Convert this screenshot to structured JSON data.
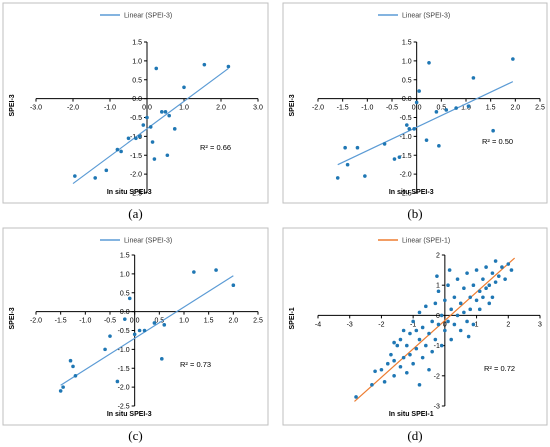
{
  "chart_data": [
    {
      "panel": "a",
      "caption": "(a)",
      "type": "scatter",
      "legend": "Linear (SPEI-3)",
      "ylabel": "SPEI-3",
      "xlabel": "In situ SPEI-3",
      "r2": "R² = 0.66",
      "colors": {
        "points": "#1f77b4",
        "line": "#5b9bd5"
      },
      "xlim": [
        -3.0,
        3.0
      ],
      "ylim": [
        -2.5,
        1.5
      ],
      "x_ticks": [
        -3.0,
        -2.0,
        -1.0,
        0.0,
        1.0,
        2.0,
        3.0
      ],
      "x_tick_labels": [
        "-3.0",
        "-2.0",
        "-1.0",
        "0.0",
        "1.0",
        "2.0",
        "3.0"
      ],
      "y_ticks": [
        1.5,
        1.0,
        0.5,
        0.0,
        -0.5,
        -1.0,
        -1.5,
        -2.0,
        -2.5
      ],
      "y_tick_labels": [
        "1.5",
        "1.0",
        "0.5",
        "0.0",
        "-0.5",
        "-1.0",
        "-1.5",
        "-2.0",
        "-2.5"
      ],
      "x_tick_labels_at_axis": true,
      "trendline": [
        [
          -2.0,
          -2.25
        ],
        [
          2.2,
          0.8
        ]
      ],
      "points": [
        [
          -1.95,
          -2.05
        ],
        [
          -1.4,
          -2.1
        ],
        [
          -1.1,
          -1.9
        ],
        [
          -0.8,
          -1.35
        ],
        [
          -0.7,
          -1.4
        ],
        [
          -0.5,
          -1.05
        ],
        [
          -0.3,
          -1.05
        ],
        [
          -0.2,
          -1.0
        ],
        [
          -0.1,
          -0.7
        ],
        [
          0.0,
          -0.5
        ],
        [
          0.1,
          -0.75
        ],
        [
          0.15,
          -1.15
        ],
        [
          0.2,
          -1.6
        ],
        [
          0.25,
          0.8
        ],
        [
          0.4,
          -0.35
        ],
        [
          0.5,
          -0.35
        ],
        [
          0.55,
          -1.5
        ],
        [
          0.6,
          -0.45
        ],
        [
          0.75,
          -0.8
        ],
        [
          1.0,
          0.3
        ],
        [
          1.55,
          0.9
        ],
        [
          2.2,
          0.85
        ]
      ]
    },
    {
      "panel": "b",
      "caption": "(b)",
      "type": "scatter",
      "legend": "Linear (SPEI-3)",
      "ylabel": "SPEI-3",
      "xlabel": "In situ SPEI-3",
      "r2": "R² = 0.50",
      "colors": {
        "points": "#1f77b4",
        "line": "#5b9bd5"
      },
      "xlim": [
        -2.0,
        2.5
      ],
      "ylim": [
        -2.5,
        1.5
      ],
      "x_ticks": [
        -2.0,
        -1.5,
        -1.0,
        -0.5,
        0.0,
        0.5,
        1.0,
        1.5,
        2.0,
        2.5
      ],
      "x_tick_labels": [
        "-2.0",
        "-1.5",
        "-1.0",
        "-0.5",
        "0.0",
        "0.5",
        "1.0",
        "1.5",
        "2.0",
        "2.5"
      ],
      "y_ticks": [
        1.5,
        1.0,
        0.5,
        0.0,
        -0.5,
        -1.0,
        -1.5,
        -2.0,
        -2.5
      ],
      "y_tick_labels": [
        "1.5",
        "1.0",
        "0.5",
        "0.0",
        "-0.5",
        "-1.0",
        "-1.5",
        "-2.0",
        "-2.5"
      ],
      "x_tick_labels_at_axis": true,
      "trendline": [
        [
          -1.6,
          -1.75
        ],
        [
          1.95,
          0.45
        ]
      ],
      "points": [
        [
          -1.6,
          -2.1
        ],
        [
          -1.45,
          -1.3
        ],
        [
          -1.4,
          -1.75
        ],
        [
          -1.2,
          -1.3
        ],
        [
          -1.05,
          -2.05
        ],
        [
          -0.65,
          -1.2
        ],
        [
          -0.45,
          -1.6
        ],
        [
          -0.35,
          -1.55
        ],
        [
          -0.2,
          -0.7
        ],
        [
          -0.15,
          -0.8
        ],
        [
          -0.05,
          -0.8
        ],
        [
          0.0,
          -0.1
        ],
        [
          0.05,
          0.2
        ],
        [
          0.2,
          -1.1
        ],
        [
          0.25,
          0.95
        ],
        [
          0.4,
          -0.35
        ],
        [
          0.45,
          -1.25
        ],
        [
          0.6,
          -0.3
        ],
        [
          0.8,
          -0.25
        ],
        [
          1.05,
          -0.2
        ],
        [
          1.15,
          0.55
        ],
        [
          1.55,
          -0.85
        ],
        [
          1.95,
          1.05
        ]
      ]
    },
    {
      "panel": "c",
      "caption": "(c)",
      "type": "scatter",
      "legend": "Linear (SPEI-3)",
      "ylabel": "SPEI-3",
      "xlabel": "In situ SPEI-3",
      "r2": "R² = 0.73",
      "colors": {
        "points": "#1f77b4",
        "line": "#5b9bd5"
      },
      "xlim": [
        -2.0,
        2.5
      ],
      "ylim": [
        -2.5,
        1.5
      ],
      "x_ticks": [
        -2.0,
        -1.5,
        -1.0,
        -0.5,
        0.0,
        0.5,
        1.0,
        1.5,
        2.0,
        2.5
      ],
      "x_tick_labels": [
        "-2.0",
        "-1.5",
        "-1.0",
        "-0.5",
        "0.0",
        "0.5",
        "1.0",
        "1.5",
        "2.0",
        "2.5"
      ],
      "y_ticks": [
        1.5,
        1.0,
        0.5,
        0.0,
        -0.5,
        -1.0,
        -1.5,
        -2.0,
        -2.5
      ],
      "y_tick_labels": [
        "1.5",
        "1.0",
        "0.5",
        "0.0",
        "-0.5",
        "-1.0",
        "-1.5",
        "-2.0",
        "-2.5"
      ],
      "x_tick_labels_at_axis": true,
      "trendline": [
        [
          -1.5,
          -1.95
        ],
        [
          2.0,
          0.95
        ]
      ],
      "points": [
        [
          -1.5,
          -2.1
        ],
        [
          -1.45,
          -2.0
        ],
        [
          -1.3,
          -1.3
        ],
        [
          -1.25,
          -1.45
        ],
        [
          -1.2,
          -1.7
        ],
        [
          -0.6,
          -1.0
        ],
        [
          -0.5,
          -0.65
        ],
        [
          -0.35,
          -1.85
        ],
        [
          -0.2,
          -0.2
        ],
        [
          -0.1,
          0.35
        ],
        [
          0.0,
          -0.6
        ],
        [
          0.1,
          -0.5
        ],
        [
          0.2,
          -0.5
        ],
        [
          0.4,
          -0.3
        ],
        [
          0.55,
          -1.25
        ],
        [
          0.6,
          -0.35
        ],
        [
          1.2,
          1.05
        ],
        [
          1.65,
          1.1
        ],
        [
          2.0,
          0.7
        ]
      ]
    },
    {
      "panel": "d",
      "caption": "(d)",
      "type": "scatter",
      "legend": "Linear (SPEI-1)",
      "ylabel": "SPEI-1",
      "xlabel": "In situ SPEI-1",
      "r2": "R² = 0.72",
      "colors": {
        "points": "#1f77b4",
        "line": "#ed7d31"
      },
      "xlim": [
        -4,
        3
      ],
      "ylim": [
        -3,
        2
      ],
      "x_ticks": [
        -4,
        -3,
        -2,
        -1,
        0,
        1,
        2,
        3
      ],
      "x_tick_labels": [
        "-4",
        "-3",
        "-2",
        "-1",
        "0",
        "1",
        "2",
        "3"
      ],
      "y_ticks": [
        2,
        1,
        0,
        -1,
        -2,
        -3
      ],
      "y_tick_labels": [
        "2",
        "1",
        "0",
        "-1",
        "-2",
        "-3"
      ],
      "x_tick_labels_at_axis": true,
      "trendline": [
        [
          -2.85,
          -2.85
        ],
        [
          2.2,
          1.9
        ]
      ],
      "points": [
        [
          -2.8,
          -2.7
        ],
        [
          -2.3,
          -2.3
        ],
        [
          -2.2,
          -1.85
        ],
        [
          -2.0,
          -1.8
        ],
        [
          -1.9,
          -2.2
        ],
        [
          -1.8,
          -1.6
        ],
        [
          -1.7,
          -1.3
        ],
        [
          -1.6,
          -2.0
        ],
        [
          -1.6,
          -1.5
        ],
        [
          -1.5,
          -1.0
        ],
        [
          -1.4,
          -1.7
        ],
        [
          -1.4,
          -0.8
        ],
        [
          -1.3,
          -1.4
        ],
        [
          -1.3,
          -0.5
        ],
        [
          -1.2,
          -1.9
        ],
        [
          -1.2,
          -1.0
        ],
        [
          -1.1,
          -1.3
        ],
        [
          -1.1,
          -0.6
        ],
        [
          -1.0,
          -1.6
        ],
        [
          -1.0,
          -0.2
        ],
        [
          -0.9,
          -1.1
        ],
        [
          -0.9,
          -0.5
        ],
        [
          -0.8,
          -2.3
        ],
        [
          -0.8,
          -0.8
        ],
        [
          -0.8,
          0.1
        ],
        [
          -0.7,
          -1.4
        ],
        [
          -0.7,
          -0.4
        ],
        [
          -0.6,
          -1.0
        ],
        [
          -0.6,
          0.3
        ],
        [
          -0.5,
          -0.6
        ],
        [
          -0.5,
          -1.8
        ],
        [
          -0.4,
          -0.2
        ],
        [
          -0.4,
          -1.2
        ],
        [
          -0.3,
          0.4
        ],
        [
          -0.3,
          -0.8
        ],
        [
          -0.2,
          -0.3
        ],
        [
          -0.2,
          0.8
        ],
        [
          -0.1,
          -1.0
        ],
        [
          -0.1,
          0.0
        ],
        [
          0.0,
          -0.5
        ],
        [
          0.0,
          0.5
        ],
        [
          0.1,
          -0.2
        ],
        [
          0.1,
          1.0
        ],
        [
          0.2,
          0.2
        ],
        [
          0.2,
          -0.8
        ],
        [
          0.3,
          0.6
        ],
        [
          0.3,
          -0.3
        ],
        [
          0.4,
          0.0
        ],
        [
          0.4,
          1.2
        ],
        [
          0.5,
          0.4
        ],
        [
          0.5,
          -0.5
        ],
        [
          0.6,
          0.9
        ],
        [
          0.6,
          0.1
        ],
        [
          0.7,
          -0.2
        ],
        [
          0.7,
          1.4
        ],
        [
          0.8,
          0.6
        ],
        [
          0.8,
          0.2
        ],
        [
          0.9,
          1.0
        ],
        [
          0.9,
          -0.3
        ],
        [
          1.0,
          0.5
        ],
        [
          1.0,
          1.5
        ],
        [
          1.1,
          0.8
        ],
        [
          1.1,
          0.2
        ],
        [
          1.2,
          1.2
        ],
        [
          1.2,
          0.6
        ],
        [
          1.3,
          1.6
        ],
        [
          1.3,
          0.9
        ],
        [
          1.4,
          1.0
        ],
        [
          1.4,
          0.4
        ],
        [
          1.5,
          1.4
        ],
        [
          1.6,
          1.1
        ],
        [
          1.6,
          1.8
        ],
        [
          1.7,
          1.3
        ],
        [
          1.8,
          1.6
        ],
        [
          1.9,
          1.2
        ],
        [
          2.0,
          1.7
        ],
        [
          2.1,
          1.5
        ],
        [
          -0.25,
          1.3
        ],
        [
          0.15,
          1.5
        ],
        [
          -1.6,
          -0.9
        ],
        [
          0.75,
          -0.7
        ],
        [
          1.5,
          0.6
        ]
      ]
    }
  ]
}
